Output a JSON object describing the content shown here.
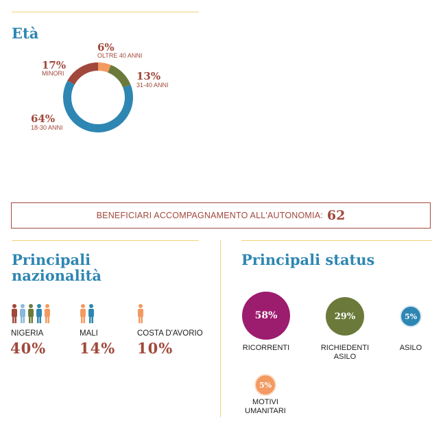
{
  "age": {
    "title": "Età",
    "segments": [
      {
        "pct": "6%",
        "label": "OLTRE 40 ANNI",
        "value": 6,
        "color": "#f29a62"
      },
      {
        "pct": "13%",
        "label": "31-40 ANNI",
        "value": 13,
        "color": "#6b7a3a"
      },
      {
        "pct": "64%",
        "label": "18-30 ANNI",
        "value": 64,
        "color": "#2e86b3"
      },
      {
        "pct": "17%",
        "label": "MINORI",
        "value": 17,
        "color": "#a0483b"
      }
    ]
  },
  "banner": {
    "text": "BENEFICIARI ACCOMPAGNAMENTO ALL'AUTONOMIA:",
    "number": "62"
  },
  "nationalities": {
    "title_line1": "Principali",
    "title_line2": "nazionalità",
    "items": [
      {
        "name": "NIGERIA",
        "pct": "40%"
      },
      {
        "name": "MALI",
        "pct": "14%"
      },
      {
        "name": "COSTA D'AVORIO",
        "pct": "10%"
      }
    ]
  },
  "status": {
    "title": "Principali status",
    "items": [
      {
        "pct": "58%",
        "label_line1": "RICORRENTI",
        "label_line2": "",
        "color": "#9c1c6e"
      },
      {
        "pct": "29%",
        "label_line1": "RICHIEDENTI",
        "label_line2": "ASILO",
        "color": "#6b7a3a"
      },
      {
        "pct": "5%",
        "label_line1": "ASILO",
        "label_line2": "",
        "color": "#2e86b3"
      },
      {
        "pct": "5%",
        "label_line1": "MOTIVI",
        "label_line2": "UMANITARI",
        "color": "#f29a62"
      }
    ]
  },
  "chart_data": [
    {
      "type": "pie",
      "title": "Età",
      "categories": [
        "OLTRE 40 ANNI",
        "31-40 ANNI",
        "18-30 ANNI",
        "MINORI"
      ],
      "values": [
        6,
        13,
        64,
        17
      ]
    },
    {
      "type": "bar",
      "title": "Principali nazionalità",
      "categories": [
        "NIGERIA",
        "MALI",
        "COSTA D'AVORIO"
      ],
      "values": [
        40,
        14,
        10
      ]
    },
    {
      "type": "scatter",
      "title": "Principali status",
      "categories": [
        "RICORRENTI",
        "RICHIEDENTI ASILO",
        "ASILO",
        "MOTIVI UMANITARI"
      ],
      "values": [
        58,
        29,
        5,
        5
      ]
    }
  ]
}
